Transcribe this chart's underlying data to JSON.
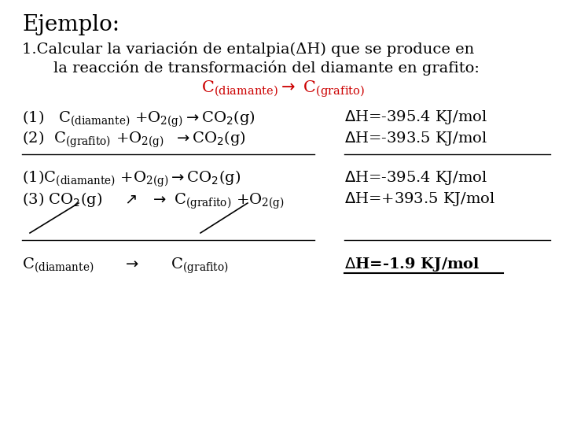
{
  "background_color": "#ffffff",
  "title_text": "Ejemplo:",
  "subtitle1": "1.Calcular la variación de entalpia(ΔH) que se produce en",
  "subtitle2": "la reacción de transformación del diamante en grafito:",
  "red_color": "#cc0000",
  "black_color": "#000000",
  "font_size_title": 20,
  "font_size_body": 14,
  "font_size_center_red": 15,
  "font_size_result": 14
}
